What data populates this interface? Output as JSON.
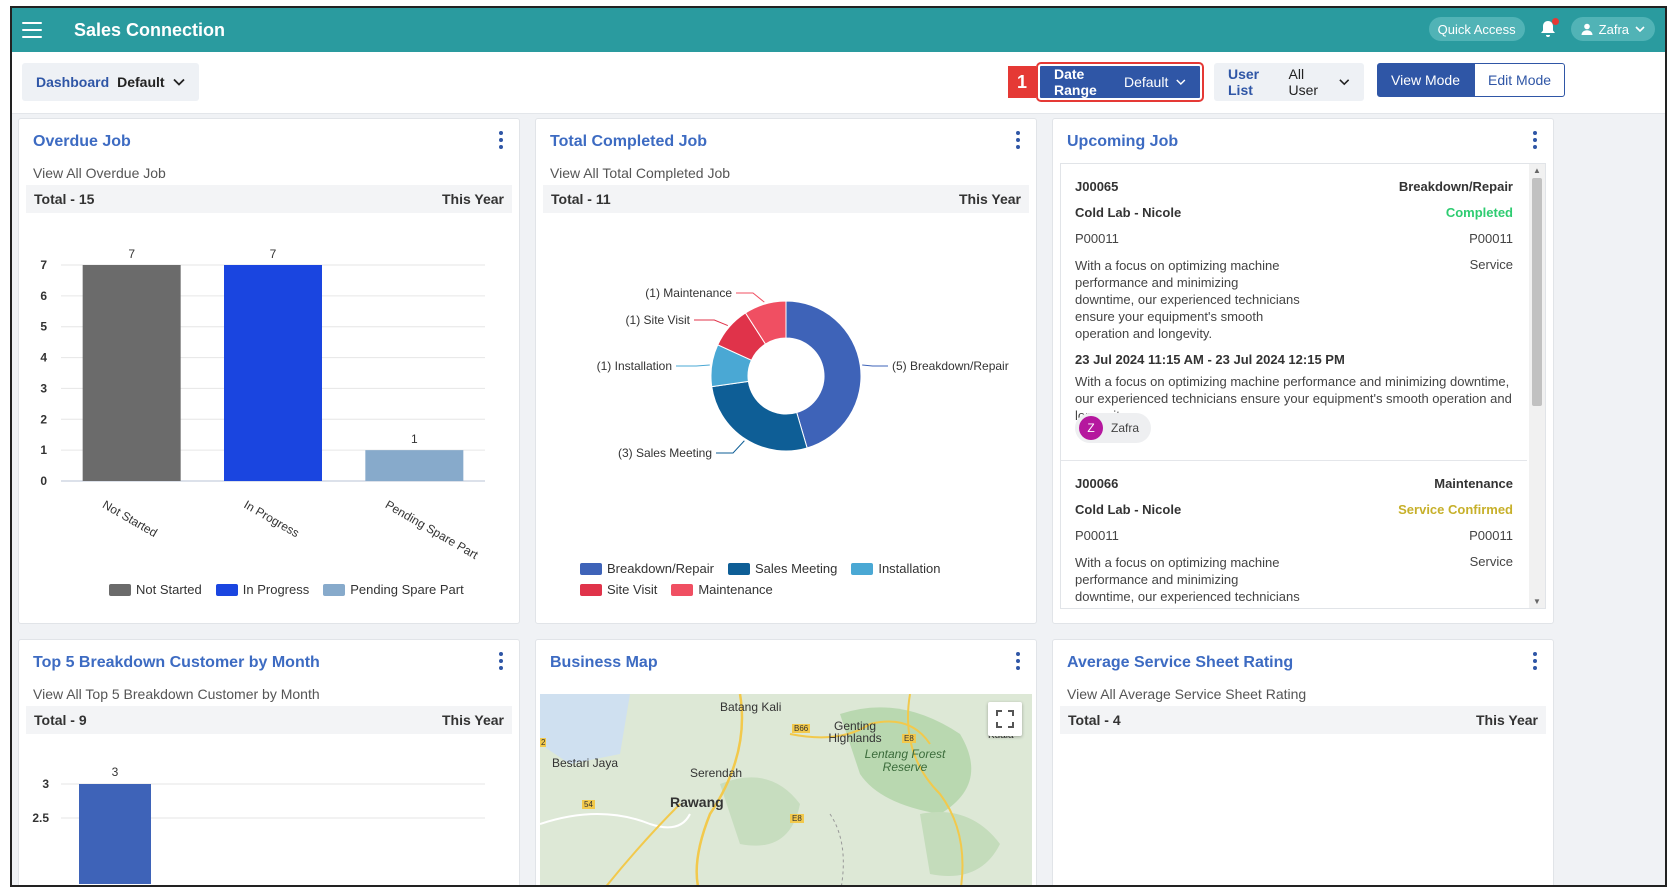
{
  "app": {
    "title": "Sales Connection"
  },
  "topbar": {
    "quick_access": "Quick Access",
    "user": "Zafra"
  },
  "toolbar": {
    "dashboard": {
      "label": "Dashboard",
      "value": "Default"
    },
    "date_range": {
      "label": "Date Range",
      "value": "Default"
    },
    "user_list": {
      "label": "User List",
      "value": "All User"
    },
    "step_badge": "1",
    "view_mode": "View Mode",
    "edit_mode": "Edit Mode"
  },
  "colors": {
    "topbar": "#2a9b9f",
    "primary": "#2f56a6",
    "title": "#3d6bc2",
    "highlight": "#e53935"
  },
  "cards": {
    "overdue": {
      "title": "Overdue Job",
      "sub": "View All Overdue Job",
      "total": "Total - 15",
      "period": "This Year"
    },
    "completed": {
      "title": "Total Completed Job",
      "sub": "View All Total Completed Job",
      "total": "Total - 11",
      "period": "This Year"
    },
    "upcoming": {
      "title": "Upcoming Job"
    },
    "top5": {
      "title": "Top 5 Breakdown Customer by Month",
      "sub": "View All Top 5 Breakdown Customer by Month",
      "total": "Total - 9",
      "period": "This Year"
    },
    "map": {
      "title": "Business Map"
    },
    "rating": {
      "title": "Average Service Sheet Rating",
      "sub": "View All Average Service Sheet Rating",
      "total": "Total - 4",
      "period": "This Year"
    }
  },
  "chart_data": [
    {
      "type": "bar",
      "categories": [
        "Not Started",
        "In Progress",
        "Pending Spare Part"
      ],
      "values": [
        7,
        7,
        1
      ],
      "colors": [
        "#6b6b6b",
        "#1a45e0",
        "#87aacb"
      ],
      "ylim": [
        0,
        7
      ],
      "yticks": [
        "0",
        "1",
        "2",
        "3",
        "4",
        "5",
        "6",
        "7"
      ],
      "legend": [
        "Not Started",
        "In Progress",
        "Pending Spare Part"
      ],
      "legend_position": "bottom"
    },
    {
      "type": "pie",
      "labels": [
        "Breakdown/Repair",
        "Sales Meeting",
        "Installation",
        "Site Visit",
        "Maintenance"
      ],
      "values": [
        5,
        3,
        1,
        1,
        1
      ],
      "colors": [
        "#3e63b8",
        "#0e5e96",
        "#4aa8d4",
        "#e0334a",
        "#f04f62"
      ],
      "slice_labels": [
        "(5) Breakdown/Repair",
        "(3) Sales Meeting",
        "(1) Installation",
        "(1) Site Visit",
        "(1) Maintenance"
      ],
      "legend_position": "bottom"
    },
    {
      "type": "bar",
      "categories": [
        ""
      ],
      "values": [
        3
      ],
      "colors": [
        "#3e63b8"
      ],
      "yticks": [
        "2.5",
        "3"
      ],
      "partial": true
    }
  ],
  "upcoming_jobs": [
    {
      "id": "J00065",
      "type": "Breakdown/Repair",
      "customer": "Cold Lab - Nicole",
      "status": "Completed",
      "ref_left": "P00011",
      "ref_right": "P00011",
      "desc": "With a focus on optimizing machine performance and minimizing downtime, our experienced technicians ensure your equipment's smooth operation and longevity.",
      "service": "Service",
      "time": "23 Jul 2024 11:15 AM - 23 Jul 2024 12:15 PM",
      "long_desc": "With a focus on optimizing machine performance and minimizing downtime, our experienced technicians ensure your equipment's smooth operation and longevity.",
      "assignee_initial": "Z",
      "assignee": "Zafra"
    },
    {
      "id": "J00066",
      "type": "Maintenance",
      "customer": "Cold Lab - Nicole",
      "status": "Service Confirmed",
      "ref_left": "P00011",
      "ref_right": "P00011",
      "desc": "With a focus on optimizing machine performance and minimizing downtime, our experienced technicians ensure your equipment's smooth operation and",
      "service": "Service"
    }
  ],
  "map_labels": [
    "Batang Kali",
    "Genting Highlands",
    "Lentang Forest Reserve",
    "Bestari Jaya",
    "Serendah",
    "Rawang",
    "B66",
    "E8",
    "54",
    "E8",
    "Kuala",
    "2"
  ]
}
